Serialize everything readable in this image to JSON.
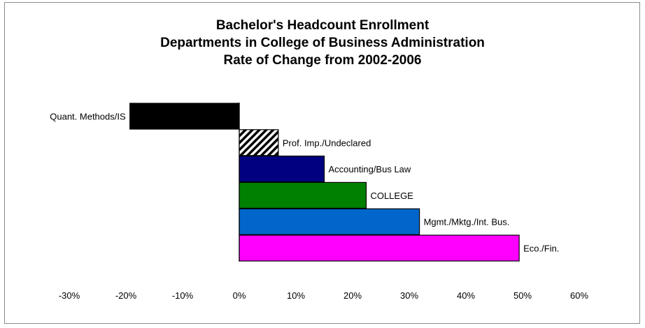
{
  "chart_data": {
    "type": "bar",
    "orientation": "horizontal",
    "title": [
      "Bachelor's Headcount Enrollment",
      "Departments in College of Business Administration",
      "Rate of Change from 2002-2006"
    ],
    "categories": [
      "Quant. Methods/IS",
      "Prof. Imp./Undeclared",
      "Accounting/Bus Law",
      "COLLEGE",
      "Mgmt./Mktg./Int. Bus.",
      "Eco./Fin."
    ],
    "values": [
      -19.3,
      6.9,
      15.0,
      22.4,
      31.8,
      49.4
    ],
    "colors": [
      "#000000",
      "hatched",
      "#000080",
      "#008000",
      "#0066cc",
      "#ff00ff"
    ],
    "xlim": [
      -30,
      60
    ],
    "xticks": [
      "-30%",
      "-20%",
      "-10%",
      "0%",
      "10%",
      "20%",
      "30%",
      "40%",
      "50%",
      "60%"
    ],
    "grid": false,
    "legend": "none",
    "xlabel": "",
    "ylabel": ""
  }
}
